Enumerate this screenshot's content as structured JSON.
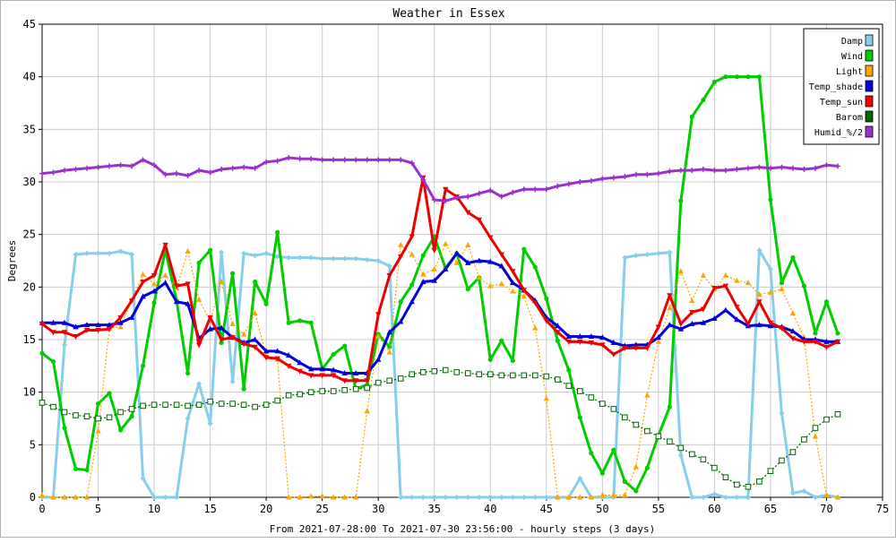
{
  "chart_data": {
    "type": "line",
    "title": "Weather in Essex",
    "xlabel": "From 2021-07-28:00 To 2021-07-30 23:56:00 - hourly steps (3 days)",
    "ylabel": "Degrees",
    "xlim": [
      0,
      75
    ],
    "ylim": [
      0,
      45
    ],
    "xticks": [
      0,
      5,
      10,
      15,
      20,
      25,
      30,
      35,
      40,
      45,
      50,
      55,
      60,
      65,
      70,
      75
    ],
    "yticks": [
      0,
      5,
      10,
      15,
      20,
      25,
      30,
      35,
      40,
      45
    ],
    "grid": true,
    "legend_position": "top-right",
    "x": [
      0,
      1,
      2,
      3,
      4,
      5,
      6,
      7,
      8,
      9,
      10,
      11,
      12,
      13,
      14,
      15,
      16,
      17,
      18,
      19,
      20,
      21,
      22,
      23,
      24,
      25,
      26,
      27,
      28,
      29,
      30,
      31,
      32,
      33,
      34,
      35,
      36,
      37,
      38,
      39,
      40,
      41,
      42,
      43,
      44,
      45,
      46,
      47,
      48,
      49,
      50,
      51,
      52,
      53,
      54,
      55,
      56,
      57,
      58,
      59,
      60,
      61,
      62,
      63,
      64,
      65,
      66,
      67,
      68,
      69,
      70,
      71
    ],
    "series": [
      {
        "name": "Damp",
        "color": "#87ceeb",
        "values": [
          0,
          0,
          14.5,
          23.1,
          23.2,
          23.2,
          23.2,
          23.4,
          23.1,
          1.8,
          0,
          0,
          0,
          7.5,
          10.8,
          7,
          23.3,
          11,
          23.2,
          23,
          23.2,
          22.9,
          22.8,
          22.8,
          22.8,
          22.7,
          22.7,
          22.7,
          22.7,
          22.6,
          22.5,
          22,
          0,
          0,
          0,
          0,
          0,
          0,
          0,
          0,
          0,
          0,
          0,
          0,
          0,
          0,
          0,
          0,
          1.8,
          0,
          0,
          0,
          22.8,
          23,
          23.1,
          23.2,
          23.3,
          4,
          0,
          0,
          0.3,
          0,
          0,
          0,
          23.5,
          21.7,
          8,
          0.4,
          0.6,
          0,
          0.2,
          0
        ]
      },
      {
        "name": "Wind",
        "color": "#00cc00",
        "values": [
          13.7,
          12.9,
          6.6,
          2.7,
          2.6,
          8.9,
          9.9,
          6.4,
          7.7,
          12.5,
          18.5,
          23.5,
          18.7,
          11.8,
          22.3,
          23.5,
          14.7,
          21.3,
          10.3,
          20.5,
          18.4,
          25.2,
          16.6,
          16.8,
          16.6,
          12.2,
          13.6,
          14.4,
          10.3,
          10.7,
          15.5,
          14.3,
          18.6,
          20.2,
          23,
          24.8,
          21.8,
          23.2,
          19.8,
          20.9,
          13.1,
          14.9,
          13,
          23.6,
          21.9,
          18.9,
          14.9,
          12.1,
          7.6,
          4.2,
          2.3,
          4.5,
          1.5,
          0.6,
          2.8,
          5.9,
          8.6,
          28.2,
          36.2,
          37.8,
          39.5,
          40,
          40,
          40,
          40,
          28.3,
          20.4,
          22.8,
          20.1,
          15.6,
          18.6,
          15.6
        ]
      },
      {
        "name": "Light",
        "color": "#ffa500",
        "values": [
          0.2,
          0,
          0,
          0,
          0,
          6.3,
          16.1,
          16.2,
          18.8,
          21.2,
          20.3,
          21.1,
          19.9,
          23.4,
          18.8,
          16.8,
          20.5,
          16.5,
          15.5,
          17.5,
          13.5,
          13.1,
          0,
          0,
          0.1,
          0.1,
          0,
          0,
          0,
          8.2,
          15.3,
          13.8,
          24,
          23.1,
          21.2,
          21.7,
          24.1,
          22.3,
          24,
          20.9,
          20.1,
          20.3,
          19.6,
          19.1,
          16.1,
          9.4,
          0,
          0,
          0,
          0,
          0.2,
          0.2,
          0.2,
          2.9,
          9.7,
          14.8,
          18,
          21.5,
          18.7,
          21.1,
          19.8,
          21.1,
          20.6,
          20.4,
          19.3,
          19.5,
          19.8,
          17.5,
          15.2,
          5.8,
          0.2,
          0
        ]
      },
      {
        "name": "Temp_shade",
        "color": "#0000dd",
        "values": [
          16.6,
          16.6,
          16.6,
          16.2,
          16.4,
          16.4,
          16.4,
          16.6,
          17.1,
          19.1,
          19.6,
          20.4,
          18.6,
          18.4,
          15.1,
          16,
          16.1,
          15.2,
          14.7,
          15,
          13.9,
          13.9,
          13.5,
          12.8,
          12.2,
          12.2,
          12.1,
          11.8,
          11.8,
          11.8,
          13.1,
          15.7,
          16.7,
          18.6,
          20.5,
          20.6,
          21.7,
          23.2,
          22.3,
          22.5,
          22.4,
          22,
          20.4,
          19.7,
          18.7,
          17.1,
          16.3,
          15.3,
          15.3,
          15.3,
          15.2,
          14.7,
          14.4,
          14.5,
          14.5,
          15.2,
          16.4,
          16,
          16.5,
          16.6,
          17,
          17.8,
          16.9,
          16.3,
          16.4,
          16.3,
          16.2,
          15.8,
          15,
          15,
          14.8,
          14.8
        ]
      },
      {
        "name": "Temp_sun",
        "color": "#ee0000",
        "values": [
          16.5,
          15.7,
          15.7,
          15.3,
          15.9,
          15.9,
          16,
          17.1,
          18.7,
          20.5,
          21.1,
          24,
          20.1,
          20.3,
          14.5,
          17.1,
          15,
          15.2,
          14.6,
          14.3,
          13.3,
          13.2,
          12.5,
          12,
          11.6,
          11.6,
          11.6,
          11.1,
          11.1,
          11.1,
          17.4,
          21.1,
          22.9,
          24.8,
          30.4,
          23.5,
          29.3,
          28.6,
          27.1,
          26.4,
          24.7,
          23.1,
          21.5,
          19.7,
          18.5,
          16.8,
          15.7,
          14.8,
          14.8,
          14.7,
          14.5,
          13.6,
          14.2,
          14.2,
          14.2,
          16.2,
          19.2,
          16.5,
          17.6,
          17.9,
          19.9,
          20.1,
          18.1,
          16.5,
          18.6,
          16.6,
          16.1,
          15.1,
          14.8,
          14.8,
          14.3,
          14.8
        ]
      },
      {
        "name": "Barom",
        "color": "#006400",
        "values": [
          9,
          8.6,
          8.1,
          7.8,
          7.7,
          7.5,
          7.6,
          8.1,
          8.4,
          8.7,
          8.8,
          8.8,
          8.8,
          8.7,
          8.8,
          9.1,
          8.9,
          8.9,
          8.8,
          8.6,
          8.8,
          9.2,
          9.7,
          9.8,
          10,
          10.1,
          10.1,
          10.2,
          10.3,
          10.4,
          10.9,
          11.1,
          11.3,
          11.7,
          11.9,
          12,
          12.1,
          11.9,
          11.8,
          11.7,
          11.7,
          11.6,
          11.6,
          11.6,
          11.6,
          11.5,
          11.2,
          10.6,
          10.1,
          9.5,
          8.9,
          8.4,
          7.6,
          6.9,
          6.3,
          5.8,
          5.3,
          4.7,
          4.1,
          3.6,
          2.8,
          1.9,
          1.2,
          1,
          1.5,
          2.5,
          3.5,
          4.3,
          5.5,
          6.6,
          7.4,
          7.9
        ]
      },
      {
        "name": "Humid_%/2",
        "color": "#9932cc",
        "values": [
          30.8,
          30.9,
          31.1,
          31.2,
          31.3,
          31.4,
          31.5,
          31.6,
          31.5,
          32.1,
          31.6,
          30.7,
          30.8,
          30.6,
          31.1,
          30.9,
          31.2,
          31.3,
          31.4,
          31.3,
          31.9,
          32,
          32.3,
          32.2,
          32.2,
          32.1,
          32.1,
          32.1,
          32.1,
          32.1,
          32.1,
          32.1,
          32.1,
          31.8,
          30.2,
          28.3,
          28.2,
          28.5,
          28.6,
          28.9,
          29.2,
          28.6,
          29,
          29.3,
          29.3,
          29.3,
          29.6,
          29.8,
          30,
          30.1,
          30.3,
          30.4,
          30.5,
          30.7,
          30.7,
          30.8,
          31,
          31.1,
          31.1,
          31.2,
          31.1,
          31.1,
          31.2,
          31.3,
          31.4,
          31.3,
          31.4,
          31.3,
          31.2,
          31.3,
          31.6,
          31.5
        ]
      }
    ]
  }
}
